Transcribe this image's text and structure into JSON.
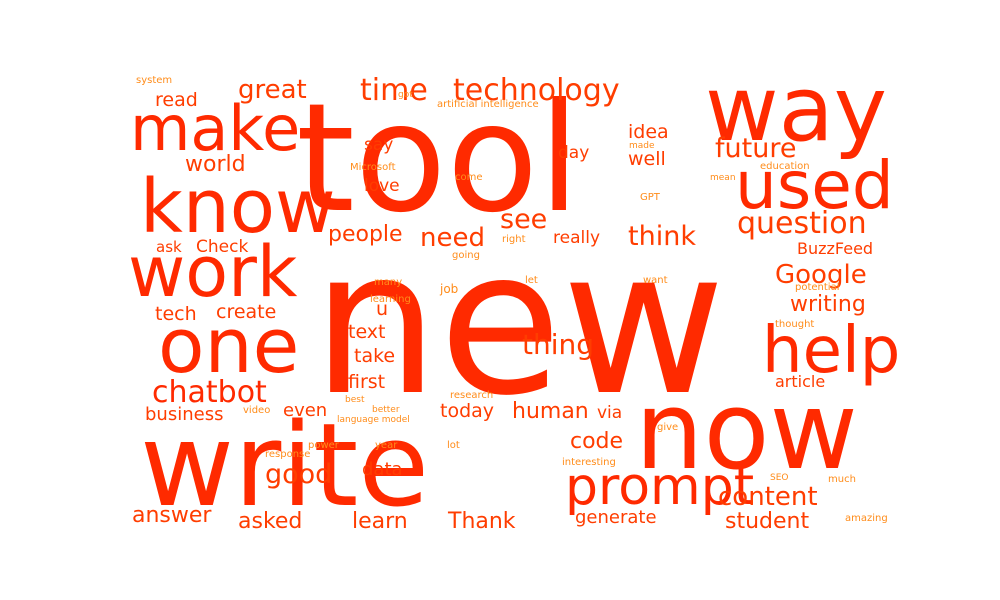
{
  "colors": {
    "background": "#ffffff",
    "big": "#ff2a00",
    "mid": "#ff3d00",
    "small": "#ff6a00",
    "tiny": "#ff8c1a"
  },
  "words": [
    "new",
    "tool",
    "write",
    "now",
    "way",
    "know",
    "work",
    "one",
    "make",
    "used",
    "help",
    "prompt",
    "chatbot",
    "time",
    "technology",
    "great",
    "read",
    "world",
    "question",
    "future",
    "think",
    "need",
    "people",
    "see",
    "Google",
    "writing",
    "thing",
    "content",
    "good",
    "code",
    "human",
    "answer",
    "asked",
    "learn",
    "Thank",
    "student",
    "generate",
    "business",
    "even",
    "today",
    "data",
    "first",
    "take",
    "text",
    "u",
    "create",
    "tech",
    "ask",
    "Check",
    "love",
    "say",
    "idea",
    "well",
    "day",
    "really",
    "BuzzFeed",
    "article",
    "via",
    "system",
    "artificial intelligence",
    "Microsoft",
    "made",
    "mean",
    "education",
    "come",
    "GPT",
    "right",
    "going",
    "let",
    "want",
    "many",
    "job",
    "learning",
    "potential",
    "thought",
    "research",
    "best",
    "better",
    "language model",
    "video",
    "power",
    "year",
    "lot",
    "give",
    "response",
    "interesting",
    "SEO",
    "much",
    "amazing",
    "got"
  ]
}
